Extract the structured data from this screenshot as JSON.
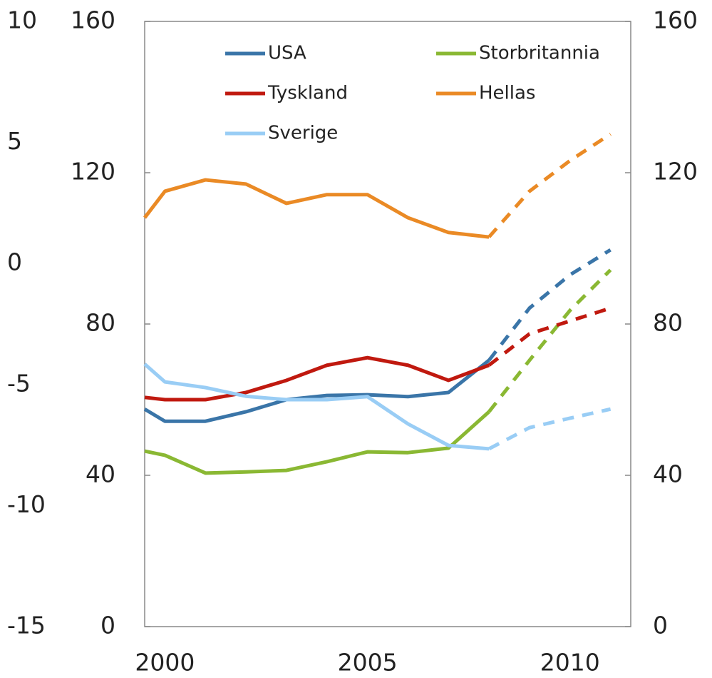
{
  "chart_data": {
    "type": "line",
    "x": [
      1999.5,
      2000,
      2001,
      2002,
      2003,
      2004,
      2005,
      2006,
      2007,
      2008,
      2009,
      2010,
      2011
    ],
    "xlim": [
      1999.5,
      2011.5
    ],
    "xticks": [
      2000,
      2005,
      2010
    ],
    "ylim": [
      0,
      160
    ],
    "yticks": [
      0,
      40,
      80,
      120,
      160
    ],
    "y2lim": [
      0,
      160
    ],
    "y2ticks": [
      0,
      40,
      80,
      120,
      160
    ],
    "y3lim": [
      -15,
      10
    ],
    "y3ticks": [
      -15,
      -10,
      -5,
      0,
      5,
      10
    ],
    "dashed_from": 2008,
    "series": [
      {
        "name": "USA",
        "color": "#3a75a8",
        "values": [
          57.5,
          54.3,
          54.3,
          56.8,
          60,
          61.1,
          61.3,
          60.8,
          61.9,
          70.4,
          84.2,
          93,
          99.6
        ]
      },
      {
        "name": "Storbritannia",
        "color": "#8ab833",
        "values": [
          46.4,
          45.3,
          40.6,
          40.9,
          41.3,
          43.6,
          46.2,
          46,
          47.2,
          56.8,
          70.4,
          83.6,
          94.3
        ]
      },
      {
        "name": "Tyskland",
        "color": "#c0190f",
        "values": [
          60.6,
          60,
          60,
          61.9,
          65.1,
          69.1,
          71.1,
          69.1,
          65.1,
          69.1,
          77.4,
          80.8,
          84.2
        ]
      },
      {
        "name": "Hellas",
        "color": "#ea8a25",
        "values": [
          108.1,
          115.1,
          118.1,
          117,
          111.9,
          114.2,
          114.2,
          108.1,
          104.2,
          103,
          115.1,
          123.2,
          130.2
        ]
      },
      {
        "name": "Sverige",
        "color": "#99cdf5",
        "values": [
          69.4,
          64.7,
          63.2,
          60.9,
          60,
          60,
          60.8,
          53.6,
          47.9,
          47,
          52.6,
          55.1,
          57.5
        ]
      }
    ]
  }
}
